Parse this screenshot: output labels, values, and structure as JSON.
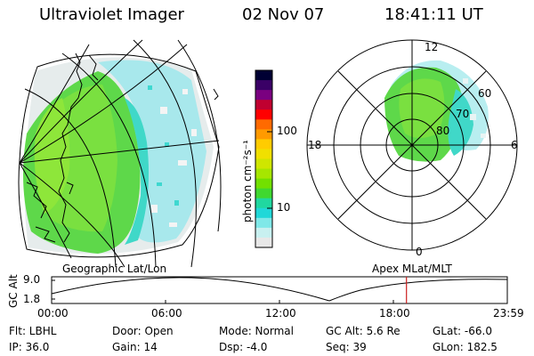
{
  "header": {
    "instrument": "Ultraviolet Imager",
    "date": "02 Nov 07",
    "time": "18:41:11 UT"
  },
  "colorbar": {
    "label": "photon cm⁻²s⁻¹",
    "ticks": [
      "100",
      "10"
    ],
    "colors": [
      "#000033",
      "#3a0066",
      "#7a0080",
      "#c00030",
      "#ff0000",
      "#ff6a00",
      "#ff9a00",
      "#ffcc00",
      "#f0e000",
      "#cfe600",
      "#a6e600",
      "#72e000",
      "#40d830",
      "#20d8a0",
      "#20d8d8",
      "#7fe8e8",
      "#c8f0f0",
      "#e8e8e8"
    ]
  },
  "polar": {
    "labels": {
      "noon": "12",
      "midnight": "0",
      "dusk": "18",
      "dawn": "6",
      "lat60": "60",
      "lat70": "70",
      "lat80": "80"
    }
  },
  "panels": {
    "left_label": "Geographic Lat/Lon",
    "right_label": "Apex  MLat/MLT"
  },
  "timeline": {
    "ylabel": "GC Alt",
    "y_ticks": [
      "9.0",
      "1.8"
    ],
    "x_ticks": [
      "00:00",
      "06:00",
      "12:00",
      "18:00",
      "23:59"
    ],
    "current_time_hours": 18.69
  },
  "info": {
    "filter": "Flt: LBHL",
    "ip": "IP: 36.0",
    "door": "Door: Open",
    "gain": "Gain: 14",
    "mode": "Mode: Normal",
    "dsp": "Dsp:    -4.0",
    "gc_alt": "GC Alt: 5.6 Re",
    "seq": "Seq: 39",
    "glat": "GLat: -66.0",
    "glon": "GLon: 182.5"
  }
}
